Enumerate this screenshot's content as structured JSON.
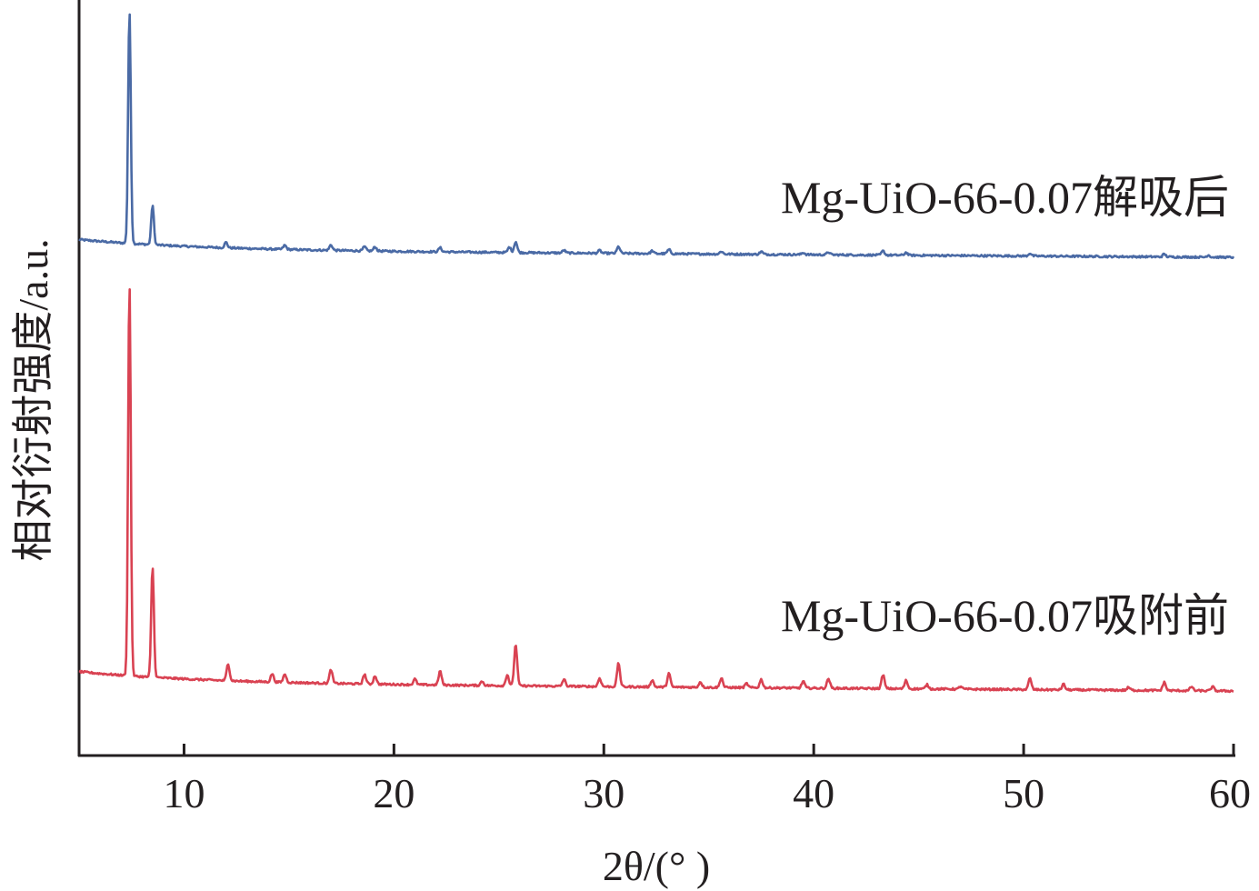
{
  "chart_data": {
    "type": "line",
    "title": "",
    "xlabel": "2θ/(° )",
    "ylabel": "相对衍射强度/a.u.",
    "xlim": [
      5,
      60
    ],
    "xticks": [
      10,
      20,
      30,
      40,
      50,
      60
    ],
    "yticks_shown": false,
    "grid": false,
    "legend": "none",
    "series": [
      {
        "name": "Mg-UiO-66-0.07解吸后",
        "color": "#4a6aa5",
        "baseline_start": 13,
        "baseline_end": 0,
        "peaks": [
          {
            "x": 7.4,
            "h": 170
          },
          {
            "x": 8.5,
            "h": 29
          },
          {
            "x": 12.0,
            "h": 4
          },
          {
            "x": 14.8,
            "h": 3
          },
          {
            "x": 17.0,
            "h": 4
          },
          {
            "x": 18.6,
            "h": 3
          },
          {
            "x": 19.1,
            "h": 3
          },
          {
            "x": 22.2,
            "h": 3
          },
          {
            "x": 25.5,
            "h": 4
          },
          {
            "x": 25.8,
            "h": 8
          },
          {
            "x": 28.1,
            "h": 2
          },
          {
            "x": 29.8,
            "h": 2
          },
          {
            "x": 30.7,
            "h": 5
          },
          {
            "x": 32.3,
            "h": 2
          },
          {
            "x": 33.1,
            "h": 3
          },
          {
            "x": 35.6,
            "h": 2
          },
          {
            "x": 37.5,
            "h": 2
          },
          {
            "x": 39.5,
            "h": 1.5
          },
          {
            "x": 40.7,
            "h": 2
          },
          {
            "x": 43.3,
            "h": 3
          },
          {
            "x": 44.4,
            "h": 2
          },
          {
            "x": 50.3,
            "h": 2
          },
          {
            "x": 56.7,
            "h": 2
          },
          {
            "x": 58.8,
            "h": 1.5
          }
        ]
      },
      {
        "name": "Mg-UiO-66-0.07吸附前",
        "color": "#d94252",
        "baseline_start": 14,
        "baseline_end": 0,
        "peaks": [
          {
            "x": 7.4,
            "h": 284
          },
          {
            "x": 8.5,
            "h": 80
          },
          {
            "x": 12.1,
            "h": 12
          },
          {
            "x": 14.2,
            "h": 6
          },
          {
            "x": 14.8,
            "h": 6
          },
          {
            "x": 17.0,
            "h": 10
          },
          {
            "x": 18.6,
            "h": 7
          },
          {
            "x": 19.1,
            "h": 6
          },
          {
            "x": 21.0,
            "h": 4
          },
          {
            "x": 22.2,
            "h": 10
          },
          {
            "x": 24.2,
            "h": 3
          },
          {
            "x": 25.4,
            "h": 8
          },
          {
            "x": 25.8,
            "h": 30
          },
          {
            "x": 28.1,
            "h": 5
          },
          {
            "x": 29.8,
            "h": 6
          },
          {
            "x": 30.7,
            "h": 17
          },
          {
            "x": 32.3,
            "h": 5
          },
          {
            "x": 33.1,
            "h": 10
          },
          {
            "x": 34.6,
            "h": 4
          },
          {
            "x": 35.6,
            "h": 7
          },
          {
            "x": 36.8,
            "h": 3
          },
          {
            "x": 37.5,
            "h": 6
          },
          {
            "x": 39.5,
            "h": 5
          },
          {
            "x": 40.7,
            "h": 7
          },
          {
            "x": 43.3,
            "h": 10
          },
          {
            "x": 44.4,
            "h": 6
          },
          {
            "x": 45.4,
            "h": 3
          },
          {
            "x": 47.0,
            "h": 2
          },
          {
            "x": 50.3,
            "h": 8
          },
          {
            "x": 51.9,
            "h": 4
          },
          {
            "x": 55.0,
            "h": 2
          },
          {
            "x": 56.7,
            "h": 6
          },
          {
            "x": 58.0,
            "h": 3
          },
          {
            "x": 59.0,
            "h": 3
          }
        ]
      }
    ]
  }
}
